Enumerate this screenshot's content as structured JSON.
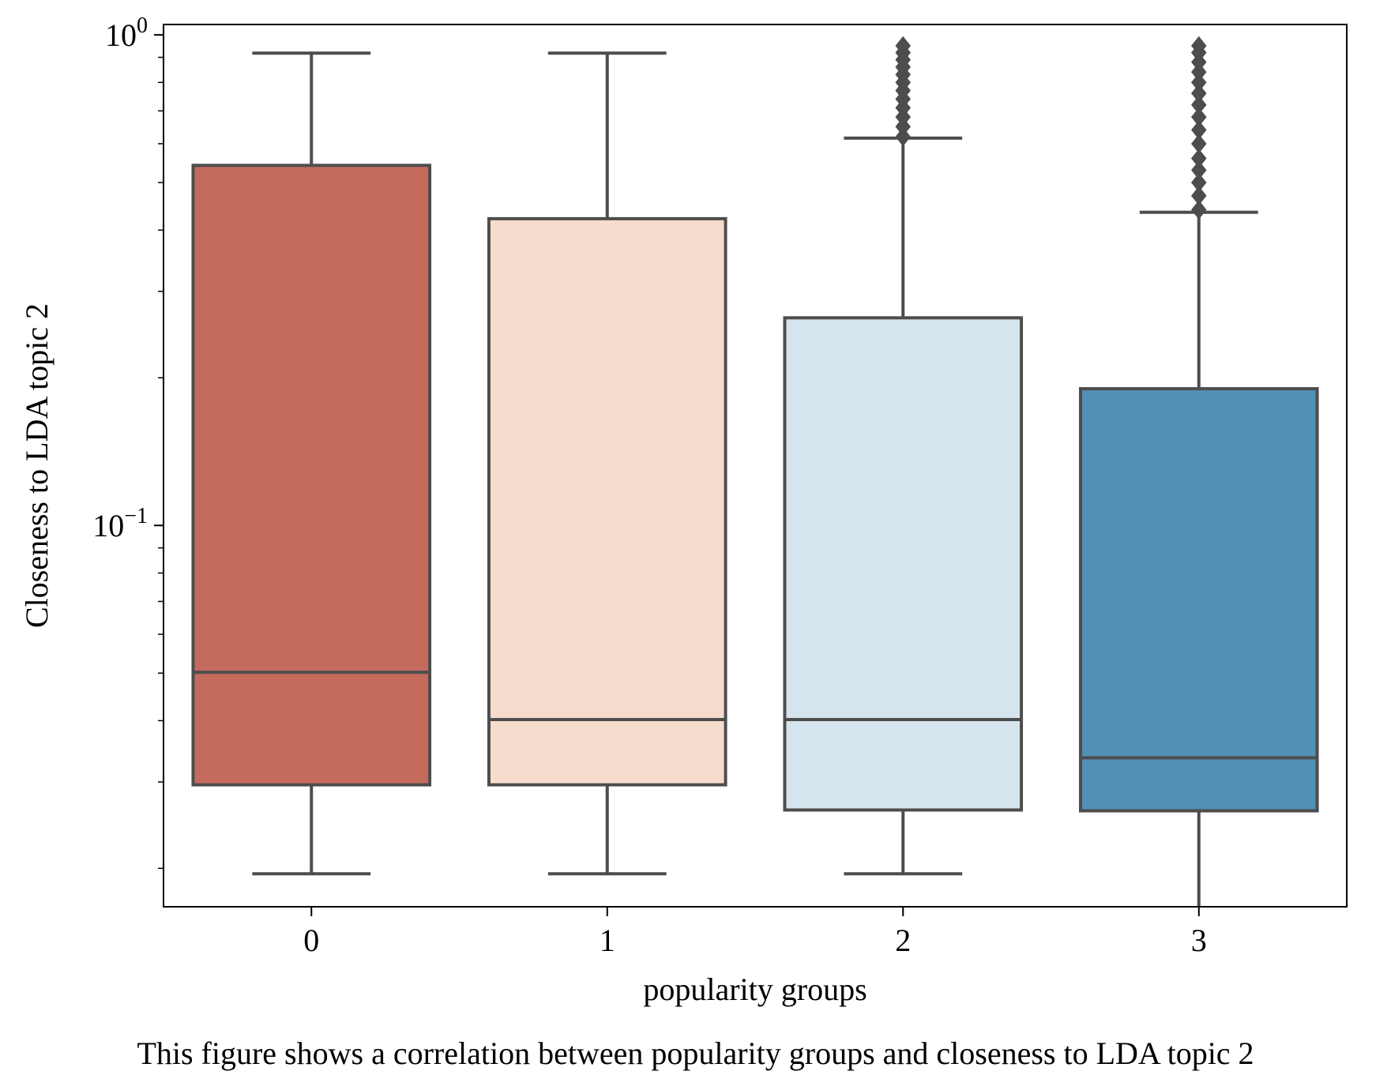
{
  "chart_data": {
    "type": "box",
    "xlabel": "popularity groups",
    "ylabel": "Closeness to LDA topic 2",
    "yscale": "log",
    "ylim": [
      0.0167,
      1.05
    ],
    "categories": [
      "0",
      "1",
      "2",
      "3"
    ],
    "y_major_ticks": [
      {
        "value": 0.1,
        "base": "10",
        "exp": "−1"
      },
      {
        "value": 1,
        "base": "10",
        "exp": "0"
      }
    ],
    "grid": false,
    "colors": [
      "#c46b5e",
      "#f6dccd",
      "#d6e4ed",
      "#5390b5"
    ],
    "edge_color": "#4d4d4d",
    "boxes": [
      {
        "category": "0",
        "whisker_low": 0.0195,
        "q1": 0.0296,
        "median": 0.0502,
        "q3": 0.542,
        "whisker_high": 0.918,
        "outliers_high": []
      },
      {
        "category": "1",
        "whisker_low": 0.0195,
        "q1": 0.0296,
        "median": 0.0402,
        "q3": 0.422,
        "whisker_high": 0.918,
        "outliers_high": []
      },
      {
        "category": "2",
        "whisker_low": 0.0195,
        "q1": 0.0263,
        "median": 0.0402,
        "q3": 0.265,
        "whisker_high": 0.616,
        "outliers_high": [
          0.62,
          0.65,
          0.68,
          0.71,
          0.74,
          0.77,
          0.8,
          0.83,
          0.86,
          0.89,
          0.92,
          0.95
        ]
      },
      {
        "category": "3",
        "whisker_low": 0.0167,
        "q1": 0.0262,
        "median": 0.0336,
        "q3": 0.19,
        "whisker_high": 0.435,
        "outliers_high": [
          0.44,
          0.47,
          0.5,
          0.53,
          0.56,
          0.6,
          0.64,
          0.68,
          0.72,
          0.76,
          0.8,
          0.84,
          0.88,
          0.92,
          0.95
        ]
      }
    ]
  },
  "caption": "This figure shows a correlation between popularity groups and closeness to LDA topic 2"
}
